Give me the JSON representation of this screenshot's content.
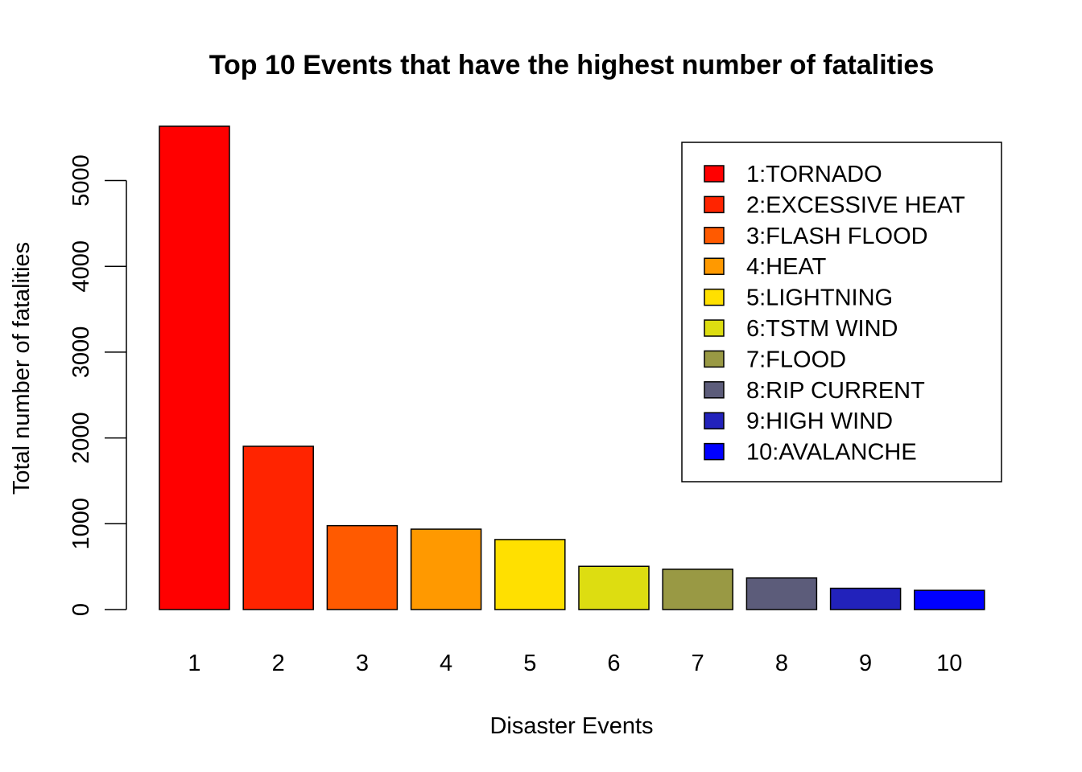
{
  "chart_data": {
    "type": "bar",
    "title": "Top 10 Events that have the highest number of fatalities",
    "xlabel": "Disaster Events",
    "ylabel": "Total number of fatalities",
    "categories": [
      "1",
      "2",
      "3",
      "4",
      "5",
      "6",
      "7",
      "8",
      "9",
      "10"
    ],
    "values": [
      5633,
      1903,
      978,
      937,
      816,
      504,
      470,
      368,
      248,
      224
    ],
    "colors": [
      "#FF0000",
      "#FF2400",
      "#FF5A00",
      "#FF9900",
      "#FFE000",
      "#DDDD11",
      "#999944",
      "#5C5C7A",
      "#2222BB",
      "#0000FF"
    ],
    "yticks": [
      0,
      1000,
      2000,
      3000,
      4000,
      5000
    ],
    "ytick_labels": [
      "0",
      "1000",
      "2000",
      "3000",
      "4000",
      "5000"
    ],
    "ylim": [
      0,
      5633
    ],
    "grid": false,
    "legend_position": "top-right",
    "legend": [
      "1:TORNADO",
      "2:EXCESSIVE HEAT",
      "3:FLASH FLOOD",
      "4:HEAT",
      "5:LIGHTNING",
      "6:TSTM WIND",
      "7:FLOOD",
      "8:RIP CURRENT",
      "9:HIGH WIND",
      "10:AVALANCHE"
    ]
  }
}
